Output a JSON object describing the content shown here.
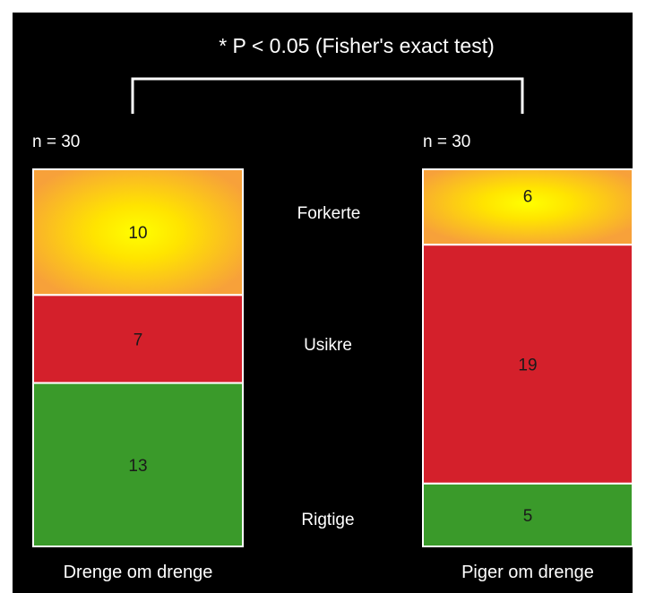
{
  "chart_data": {
    "type": "stacked-bar",
    "title": "* P < 0.05 (Fisher's exact test)",
    "categories": [
      "Drenge om drenge",
      "Piger om drenge"
    ],
    "n_labels": [
      "n = 30",
      "n = 30"
    ],
    "series": [
      {
        "name": "Forkerte",
        "values": [
          10,
          6
        ],
        "color": "#f7a13a"
      },
      {
        "name": "Usikre",
        "values": [
          7,
          19
        ],
        "color": "#d4202b"
      },
      {
        "name": "Rigtige",
        "values": [
          13,
          5
        ],
        "color": "#3a9a2a"
      }
    ],
    "stack_order": "top-to-bottom",
    "ylim": [
      0,
      30
    ],
    "grid": false,
    "legend": "center-between-bars",
    "colors": {
      "background": "#000000",
      "text": "#ffffff",
      "value_text": "#1a1a1a",
      "segment_border": "#ffffff",
      "highlight": "#ffff00"
    }
  }
}
